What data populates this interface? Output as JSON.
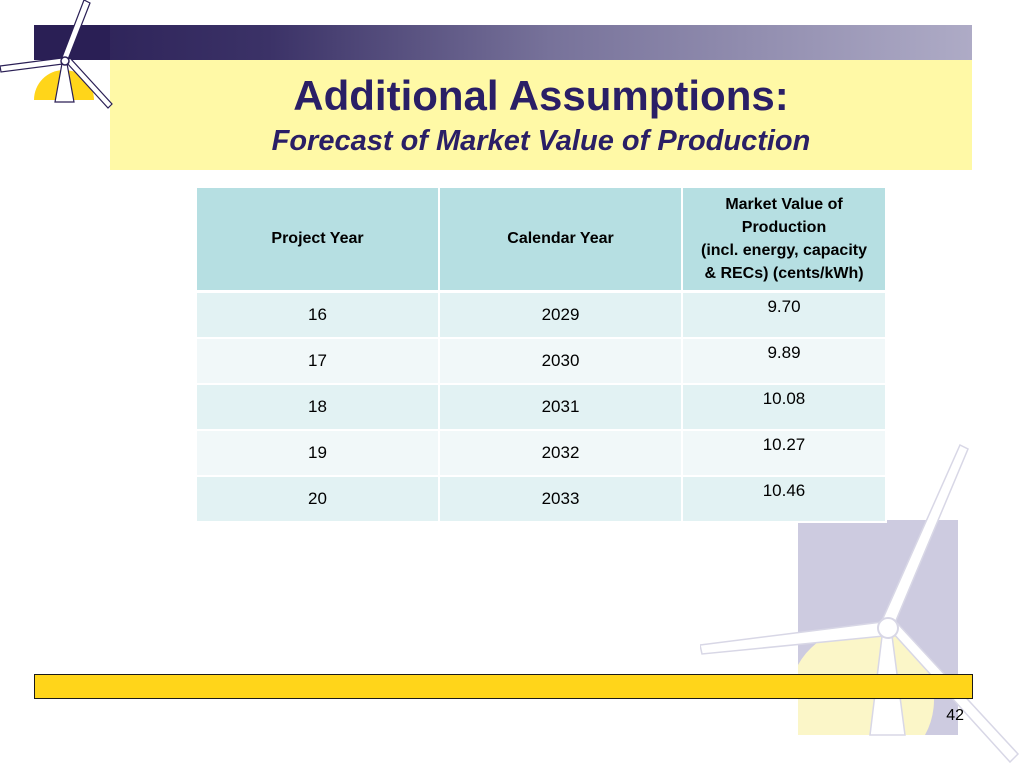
{
  "slide": {
    "title": "Additional Assumptions:",
    "subtitle": "Forecast of Market Value of Production",
    "page_number": "42"
  },
  "table": {
    "headers": {
      "col1": "Project Year",
      "col2": "Calendar Year",
      "col3_line1": "Market Value of",
      "col3_line2": "Production",
      "col3_line3": "(incl. energy, capacity",
      "col3_line4": "& RECs) (cents/kWh)"
    },
    "rows": [
      {
        "project_year": "16",
        "calendar_year": "2029",
        "market_value": "9.70"
      },
      {
        "project_year": "17",
        "calendar_year": "2030",
        "market_value": "9.89"
      },
      {
        "project_year": "18",
        "calendar_year": "2031",
        "market_value": "10.08"
      },
      {
        "project_year": "19",
        "calendar_year": "2032",
        "market_value": "10.27"
      },
      {
        "project_year": "20",
        "calendar_year": "2033",
        "market_value": "10.46"
      }
    ]
  },
  "icons": {
    "logo": "wind-turbine-logo-icon",
    "background": "wind-turbine-watermark-icon"
  },
  "colors": {
    "title_text": "#2a1f66",
    "title_band": "#fff9a6",
    "header_cell": "#b6dfe2",
    "bottom_bar": "#ffd51a"
  }
}
